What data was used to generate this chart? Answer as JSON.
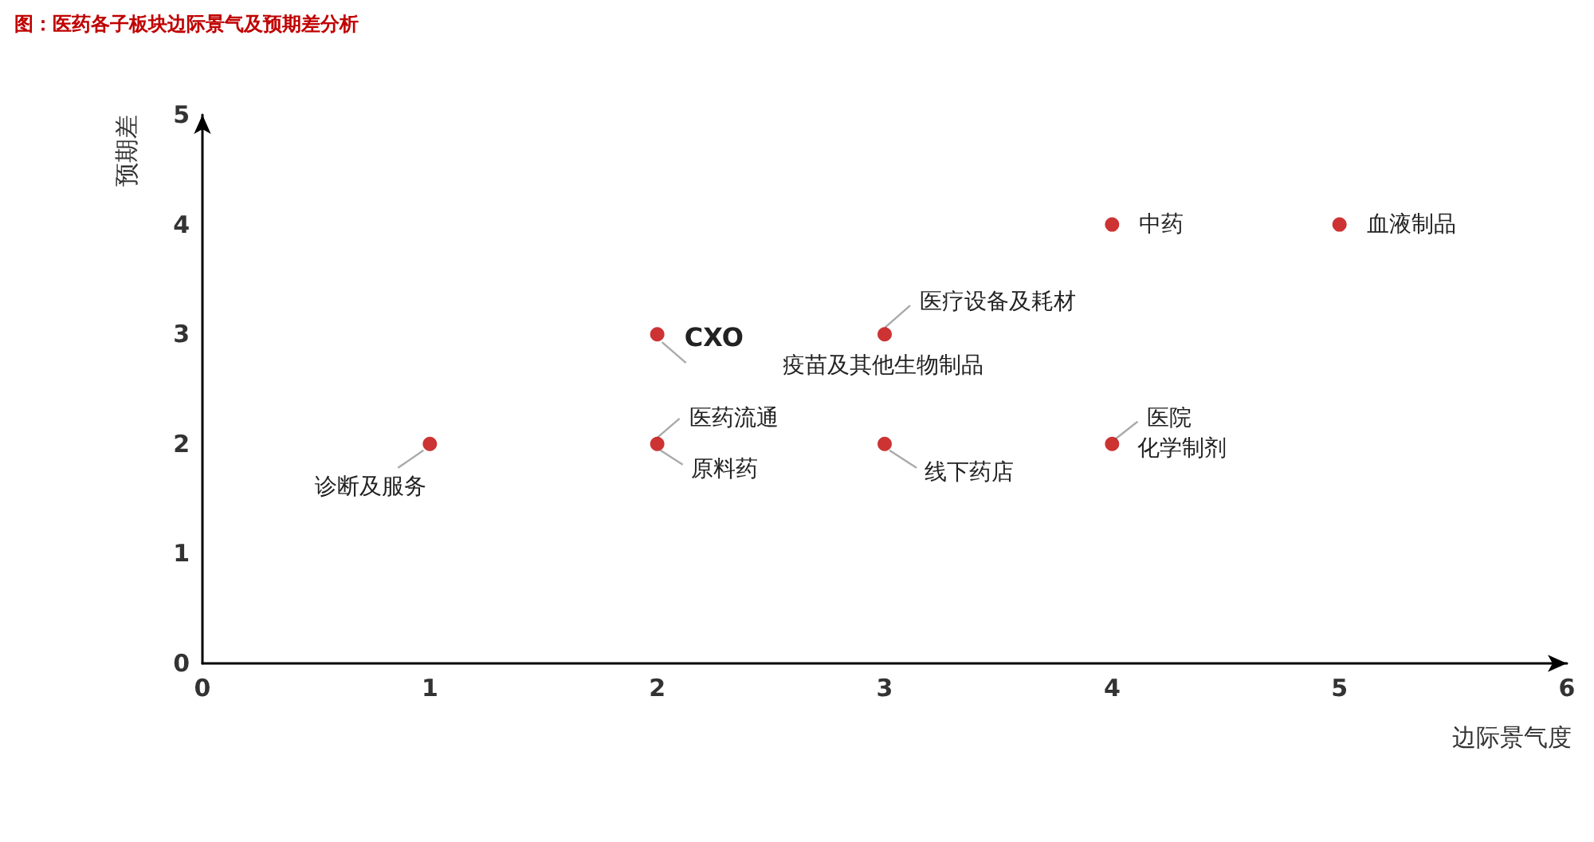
{
  "chart_data": {
    "type": "scatter",
    "title": "图：医药各子板块边际景气及预期差分析",
    "xlabel": "边际景气度",
    "ylabel": "预期差",
    "x": [
      1,
      2,
      2,
      3,
      3,
      4,
      5,
      4
    ],
    "series": [
      {
        "color": "#c00000",
        "values": [
          2,
          3,
          2,
          3,
          2,
          4,
          4,
          2
        ]
      }
    ],
    "xlim": [
      0,
      6
    ],
    "xticks": [
      0,
      1,
      2,
      3,
      4,
      5,
      6
    ],
    "ylim": [
      0,
      5
    ],
    "yticks": [
      0,
      1,
      2,
      3,
      4,
      5
    ],
    "grid": false,
    "marker": "circle",
    "annotations": [
      {
        "text": "诊断及服务",
        "x": 1,
        "y": 2
      },
      {
        "text": "CXO",
        "x": 2,
        "y": 3
      },
      {
        "text": "医药流通",
        "x": 2,
        "y": 2
      },
      {
        "text": "原料药",
        "x": 2,
        "y": 2
      },
      {
        "text": "医疗设备及耗材",
        "x": 3,
        "y": 3
      },
      {
        "text": "疫苗及其他生物制品",
        "x": 3,
        "y": 3
      },
      {
        "text": "线下药店",
        "x": 3,
        "y": 2
      },
      {
        "text": "中药",
        "x": 4,
        "y": 4
      },
      {
        "text": "血液制品",
        "x": 5,
        "y": 4
      },
      {
        "text": "医院",
        "x": 4,
        "y": 2
      },
      {
        "text": "化学制剂",
        "x": 4,
        "y": 2
      }
    ]
  }
}
